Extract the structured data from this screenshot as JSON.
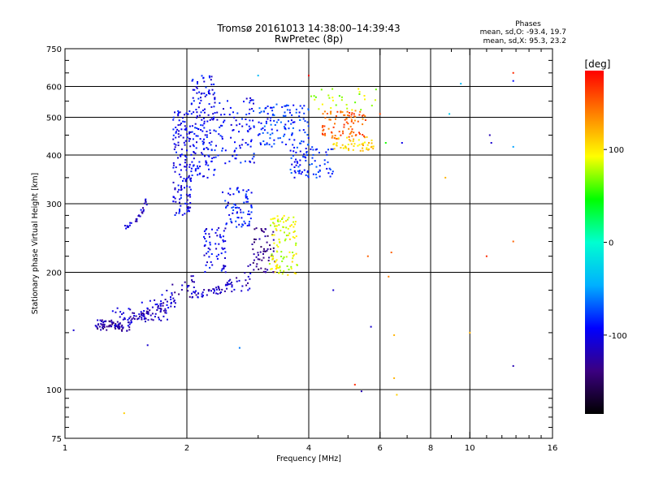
{
  "chart_data": {
    "type": "scatter",
    "title": "Tromsø 20161013 14:38:00–14:39:43",
    "subtitle": "RwPretec (8p)",
    "xlabel": "Frequency [MHz]",
    "ylabel": "Stationary phase Virtual Height [km]",
    "x_scale": "log",
    "y_scale": "log",
    "xlim": [
      1,
      16
    ],
    "ylim": [
      75,
      750
    ],
    "x_ticks": [
      {
        "value": 1,
        "label": "1"
      },
      {
        "value": 2,
        "label": "2"
      },
      {
        "value": 4,
        "label": "4"
      },
      {
        "value": 6,
        "label": "6"
      },
      {
        "value": 8,
        "label": "8"
      },
      {
        "value": 10,
        "label": "10"
      },
      {
        "value": 16,
        "label": "16"
      }
    ],
    "y_ticks": [
      {
        "value": 75,
        "label": "75"
      },
      {
        "value": 100,
        "label": "100"
      },
      {
        "value": 200,
        "label": "200"
      },
      {
        "value": 300,
        "label": "300"
      },
      {
        "value": 400,
        "label": "400"
      },
      {
        "value": 500,
        "label": "500"
      },
      {
        "value": 600,
        "label": "600"
      },
      {
        "value": 750,
        "label": "750"
      }
    ],
    "x_gridlines": [
      2,
      4,
      6,
      8,
      10
    ],
    "y_gridlines": [
      100,
      200,
      300,
      400,
      500,
      600
    ],
    "grid": true,
    "stats": {
      "header": "Phases",
      "line_o": "mean, sd,O: -93.4, 19.7",
      "line_x": "mean, sd,X:  95.3, 23.2"
    },
    "colorbar": {
      "label": "[deg]",
      "min": -185,
      "max": 185,
      "ticks": [
        {
          "value": 100,
          "label": "100"
        },
        {
          "value": 0,
          "label": "0"
        },
        {
          "value": -100,
          "label": "-100"
        }
      ],
      "colormap": [
        "#000000",
        "#3b0080",
        "#0000ff",
        "#00b0ff",
        "#00ffd0",
        "#00ff00",
        "#ffff00",
        "#ff8000",
        "#ff0000"
      ]
    },
    "clusters": [
      {
        "x": [
          1.18,
          1.45
        ],
        "y": [
          142,
          152
        ],
        "phase": -128,
        "n": 70,
        "shape": "band",
        "y_end": [
          140,
          146
        ]
      },
      {
        "x": [
          1.3,
          1.85
        ],
        "y": [
          144,
          162
        ],
        "phase": -110,
        "n": 80,
        "shape": "band",
        "y_end": [
          150,
          190
        ]
      },
      {
        "x": [
          1.45,
          2.1
        ],
        "y": [
          150,
          158
        ],
        "phase": -120,
        "n": 60,
        "shape": "band",
        "y_end": [
          175,
          210
        ]
      },
      {
        "x": [
          2.05,
          2.9
        ],
        "y": [
          172,
          180
        ],
        "phase": -115,
        "n": 70,
        "shape": "band",
        "y_end": [
          180,
          215
        ]
      },
      {
        "x": [
          1.4,
          1.6
        ],
        "y": [
          258,
          265
        ],
        "phase": -110,
        "n": 30,
        "shape": "band",
        "y_end": [
          300,
          320
        ]
      },
      {
        "x": [
          1.85,
          2.05
        ],
        "y": [
          280,
          520
        ],
        "phase": -100,
        "n": 150,
        "shape": "box"
      },
      {
        "x": [
          2.05,
          2.35
        ],
        "y": [
          350,
          640
        ],
        "phase": -95,
        "n": 160,
        "shape": "box"
      },
      {
        "x": [
          2.2,
          2.5
        ],
        "y": [
          200,
          260
        ],
        "phase": -100,
        "n": 60,
        "shape": "box"
      },
      {
        "x": [
          2.45,
          2.9
        ],
        "y": [
          260,
          330
        ],
        "phase": -90,
        "n": 70,
        "shape": "box"
      },
      {
        "x": [
          2.35,
          2.95
        ],
        "y": [
          380,
          560
        ],
        "phase": -95,
        "n": 90,
        "shape": "box"
      },
      {
        "x": [
          2.9,
          3.3
        ],
        "y": [
          200,
          260
        ],
        "phase": -135,
        "n": 60,
        "shape": "box"
      },
      {
        "x": [
          3.2,
          3.75
        ],
        "y": [
          195,
          280
        ],
        "phase": 90,
        "n": 110,
        "shape": "box"
      },
      {
        "x": [
          3.0,
          4.0
        ],
        "y": [
          420,
          540
        ],
        "phase": -80,
        "n": 120,
        "shape": "box"
      },
      {
        "x": [
          3.6,
          4.6
        ],
        "y": [
          350,
          420
        ],
        "phase": -85,
        "n": 80,
        "shape": "box"
      },
      {
        "x": [
          4.3,
          5.6
        ],
        "y": [
          440,
          520
        ],
        "phase": 150,
        "n": 90,
        "shape": "box"
      },
      {
        "x": [
          4.6,
          5.8
        ],
        "y": [
          410,
          445
        ],
        "phase": 110,
        "n": 50,
        "shape": "box"
      },
      {
        "x": [
          4.0,
          5.9
        ],
        "y": [
          520,
          600
        ],
        "phase": 80,
        "n": 30,
        "shape": "box"
      }
    ],
    "points": [
      {
        "x": 1.05,
        "y": 142,
        "phase": -110
      },
      {
        "x": 1.4,
        "y": 87,
        "phase": 110
      },
      {
        "x": 1.6,
        "y": 130,
        "phase": -110
      },
      {
        "x": 2.7,
        "y": 128,
        "phase": -60
      },
      {
        "x": 3.0,
        "y": 640,
        "phase": -40
      },
      {
        "x": 4.0,
        "y": 640,
        "phase": 180
      },
      {
        "x": 4.6,
        "y": 180,
        "phase": -110
      },
      {
        "x": 5.2,
        "y": 103,
        "phase": 170
      },
      {
        "x": 5.4,
        "y": 99,
        "phase": -120
      },
      {
        "x": 5.6,
        "y": 220,
        "phase": 150
      },
      {
        "x": 5.7,
        "y": 145,
        "phase": -110
      },
      {
        "x": 6.0,
        "y": 510,
        "phase": 160
      },
      {
        "x": 6.2,
        "y": 430,
        "phase": 50
      },
      {
        "x": 6.3,
        "y": 195,
        "phase": 140
      },
      {
        "x": 6.4,
        "y": 225,
        "phase": 150
      },
      {
        "x": 6.5,
        "y": 138,
        "phase": 120
      },
      {
        "x": 6.5,
        "y": 107,
        "phase": 120
      },
      {
        "x": 6.6,
        "y": 97,
        "phase": 110
      },
      {
        "x": 6.8,
        "y": 430,
        "phase": -100
      },
      {
        "x": 8.7,
        "y": 350,
        "phase": 120
      },
      {
        "x": 8.9,
        "y": 510,
        "phase": -30
      },
      {
        "x": 9.5,
        "y": 610,
        "phase": -40
      },
      {
        "x": 10.0,
        "y": 140,
        "phase": 120
      },
      {
        "x": 11.0,
        "y": 220,
        "phase": 170
      },
      {
        "x": 11.2,
        "y": 450,
        "phase": -120
      },
      {
        "x": 11.3,
        "y": 430,
        "phase": -110
      },
      {
        "x": 12.8,
        "y": 650,
        "phase": 170
      },
      {
        "x": 12.8,
        "y": 620,
        "phase": -90
      },
      {
        "x": 12.8,
        "y": 420,
        "phase": -50
      },
      {
        "x": 12.8,
        "y": 240,
        "phase": 150
      },
      {
        "x": 12.8,
        "y": 115,
        "phase": -120
      }
    ]
  }
}
